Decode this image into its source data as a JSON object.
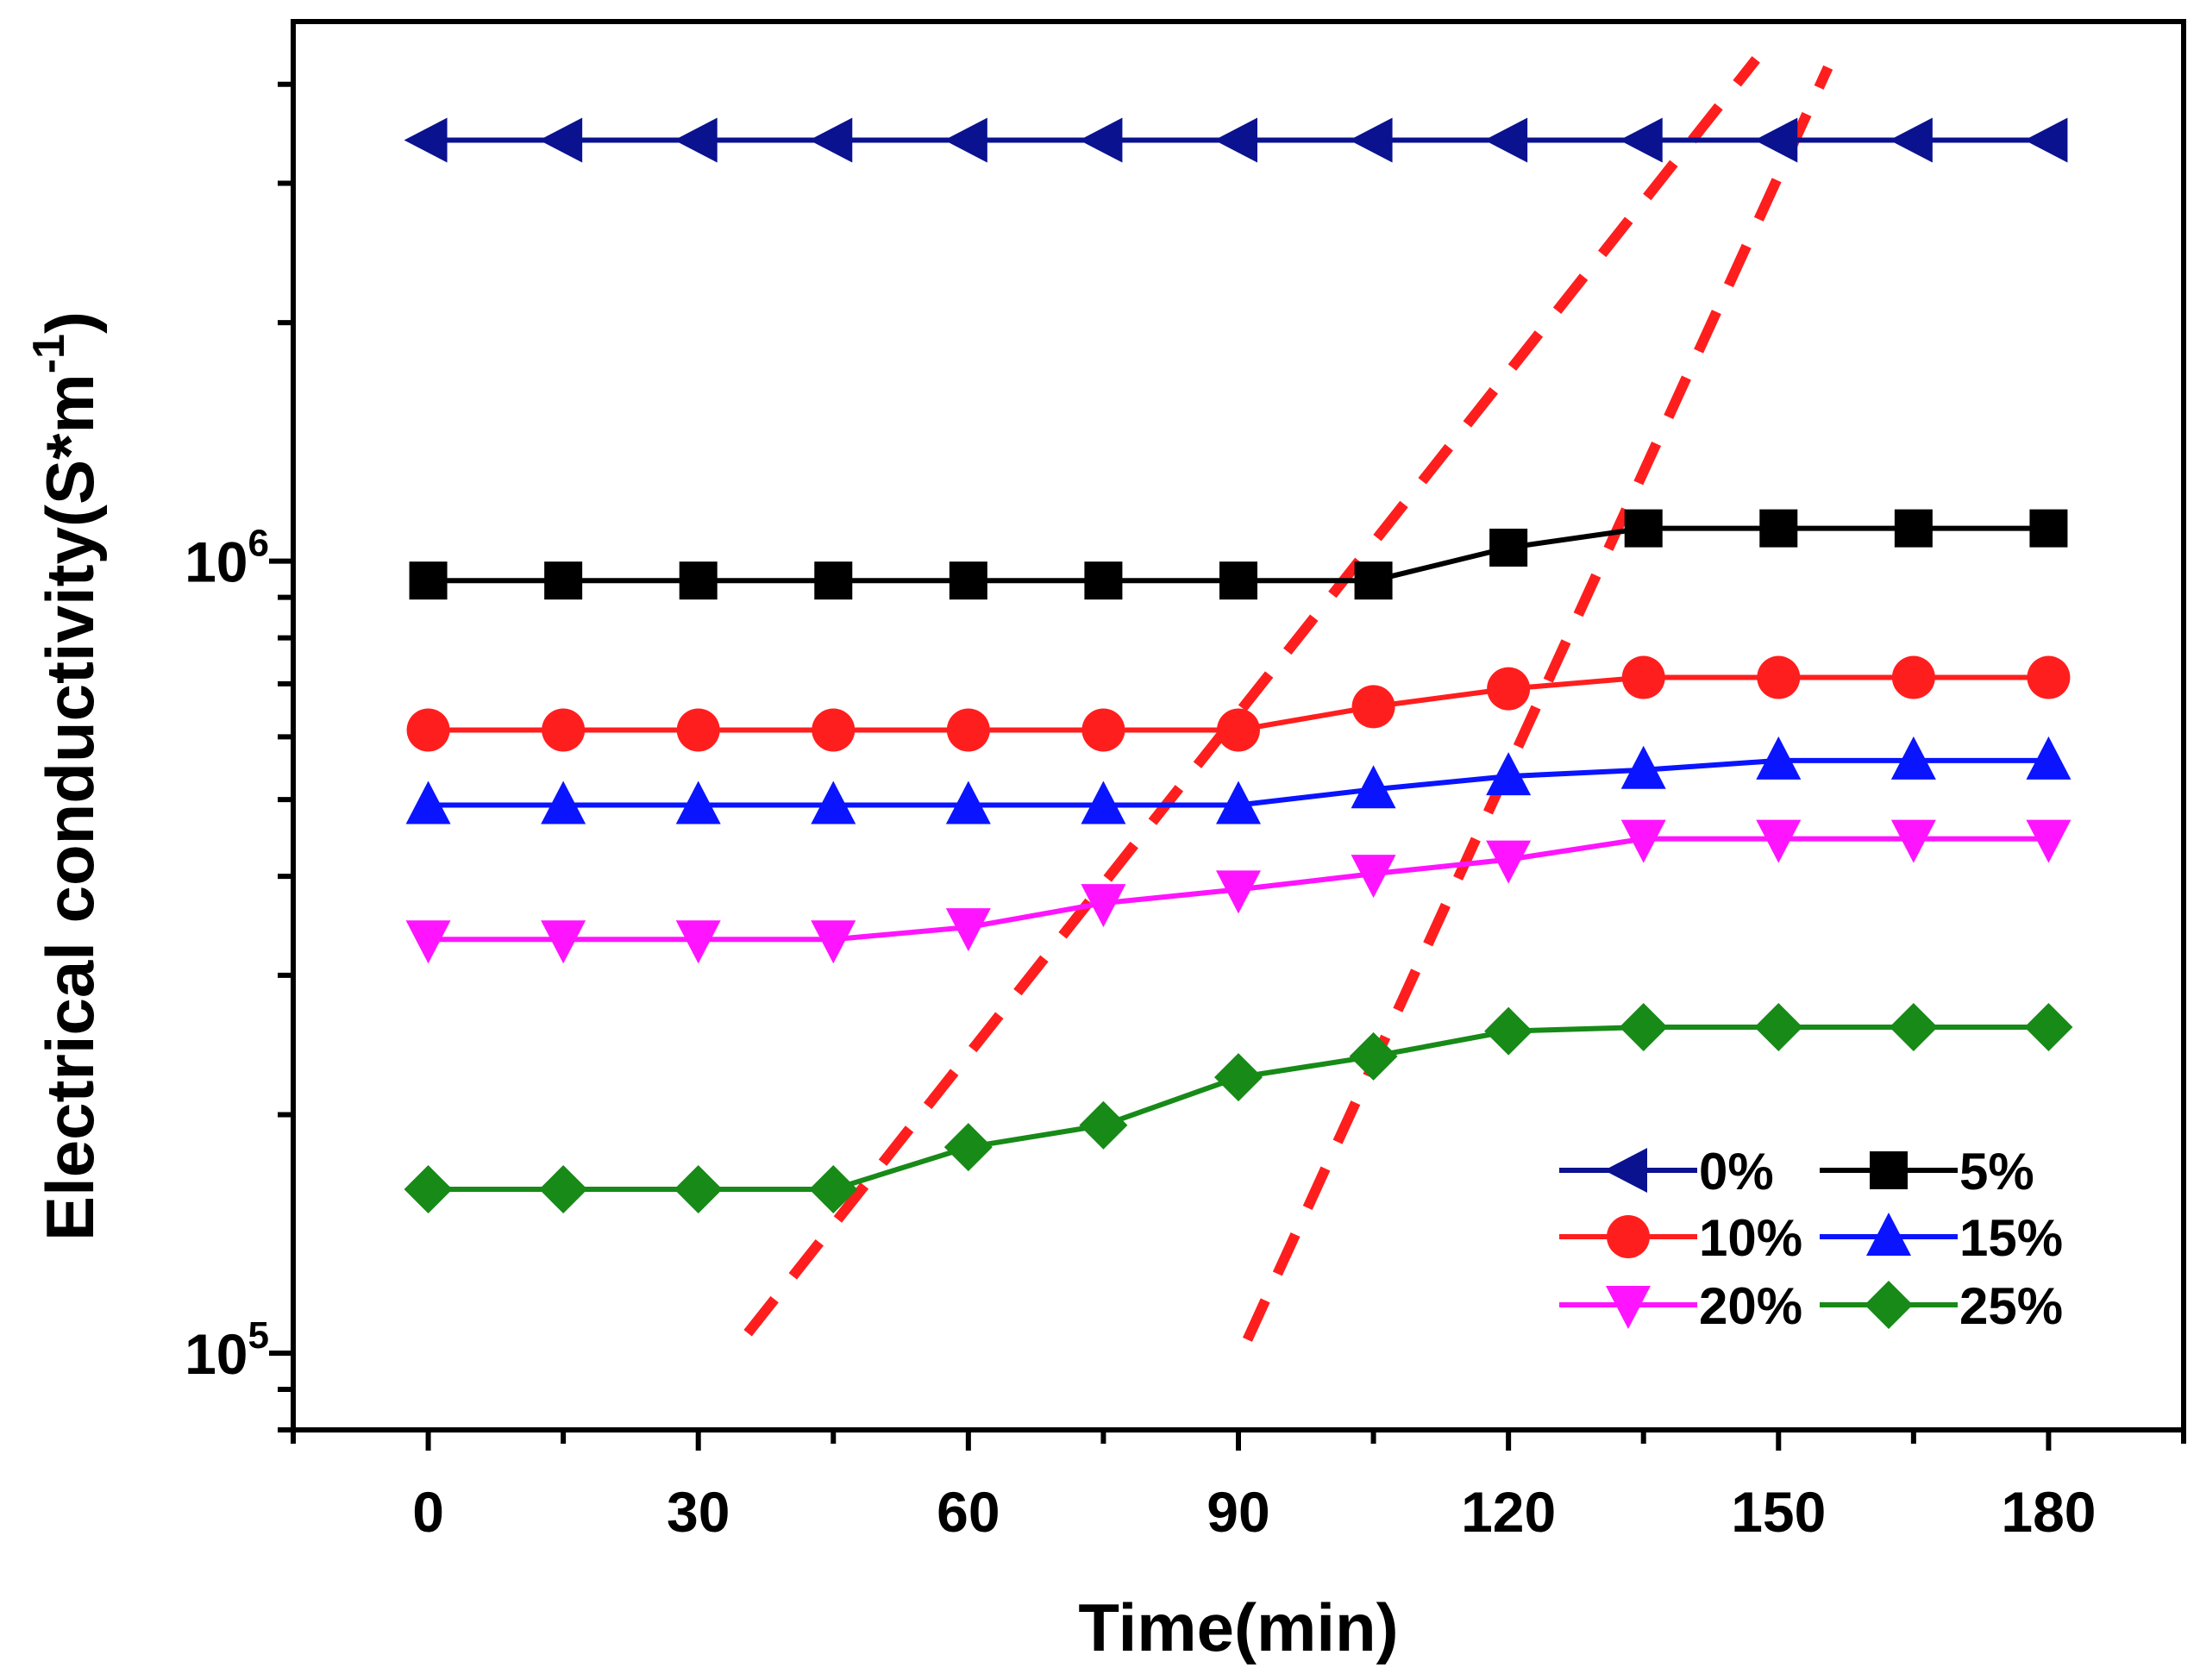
{
  "chart_data": {
    "type": "line",
    "title": "",
    "xlabel": "Time(min)",
    "ylabel": "Electrical conductivity(S*m",
    "ylabel_superscript": "-1",
    "ylabel_close": ")",
    "yscale": "log",
    "xlim": [
      -15,
      195
    ],
    "ylim": [
      80000,
      4800000
    ],
    "x": [
      0,
      15,
      30,
      45,
      60,
      75,
      90,
      105,
      120,
      135,
      150,
      165,
      180
    ],
    "x_ticks": [
      0,
      30,
      60,
      90,
      120,
      150,
      180
    ],
    "x_tick_labels": [
      "0",
      "30",
      "60",
      "90",
      "120",
      "150",
      "180"
    ],
    "y_tick_labels": [
      {
        "base": "10",
        "exp": "6",
        "value": 1000000
      },
      {
        "base": "10",
        "exp": "5",
        "value": 100000
      }
    ],
    "legend_position": "bottom-right",
    "series": [
      {
        "name": "0%",
        "color": "#0A1290",
        "marker": "triangle-left",
        "values": [
          3400000,
          3400000,
          3400000,
          3400000,
          3400000,
          3400000,
          3400000,
          3400000,
          3400000,
          3400000,
          3400000,
          3400000,
          3400000
        ]
      },
      {
        "name": "5%",
        "color": "#000000",
        "marker": "square",
        "values": [
          945000,
          945000,
          945000,
          945000,
          945000,
          945000,
          945000,
          945000,
          1040000,
          1100000,
          1100000,
          1100000,
          1100000
        ]
      },
      {
        "name": "10%",
        "color": "#FF1E1E",
        "marker": "circle",
        "values": [
          612000,
          612000,
          612000,
          612000,
          612000,
          612000,
          612000,
          655000,
          690000,
          713000,
          713000,
          713000,
          713000
        ]
      },
      {
        "name": "15%",
        "color": "#0A14FF",
        "marker": "triangle-up",
        "values": [
          492000,
          492000,
          492000,
          492000,
          492000,
          492000,
          492000,
          515000,
          535000,
          545000,
          560000,
          560000,
          560000
        ]
      },
      {
        "name": "20%",
        "color": "#FF14FF",
        "marker": "triangle-down",
        "values": [
          333000,
          333000,
          333000,
          333000,
          345000,
          370000,
          385000,
          403000,
          420000,
          446000,
          446000,
          446000,
          446000
        ]
      },
      {
        "name": "25%",
        "color": "#178A17",
        "marker": "diamond",
        "values": [
          161000,
          161000,
          161000,
          161000,
          182000,
          194000,
          223000,
          237000,
          255000,
          258000,
          258000,
          258000,
          258000
        ]
      }
    ],
    "annotations": [
      {
        "type": "dashed-line",
        "color": "#FF1E1E",
        "from": {
          "x": 35.5,
          "y": 106000
        },
        "to": {
          "x": 147.5,
          "y": 4300000
        }
      },
      {
        "type": "dashed-line",
        "color": "#FF1E1E",
        "from": {
          "x": 91.0,
          "y": 104000
        },
        "to": {
          "x": 155.5,
          "y": 4200000
        }
      }
    ]
  }
}
